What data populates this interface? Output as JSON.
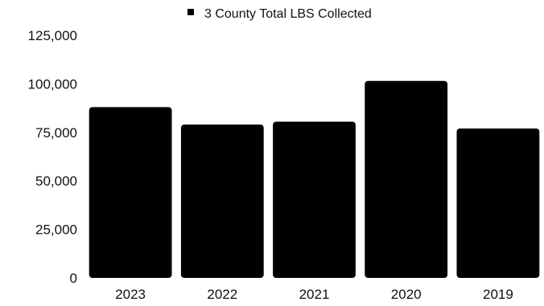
{
  "chart_data": {
    "type": "bar",
    "categories": [
      "2023",
      "2022",
      "2021",
      "2020",
      "2019"
    ],
    "series": [
      {
        "name": "3 County Total LBS Collected",
        "color": "#000000",
        "values": [
          88000,
          79000,
          80500,
          101500,
          77000
        ]
      }
    ],
    "y_ticks": [
      "0",
      "25,000",
      "50,000",
      "75,000",
      "100,000",
      "125,000"
    ],
    "ylim": [
      0,
      125000
    ],
    "legend_position": "top-center",
    "grid": false
  }
}
